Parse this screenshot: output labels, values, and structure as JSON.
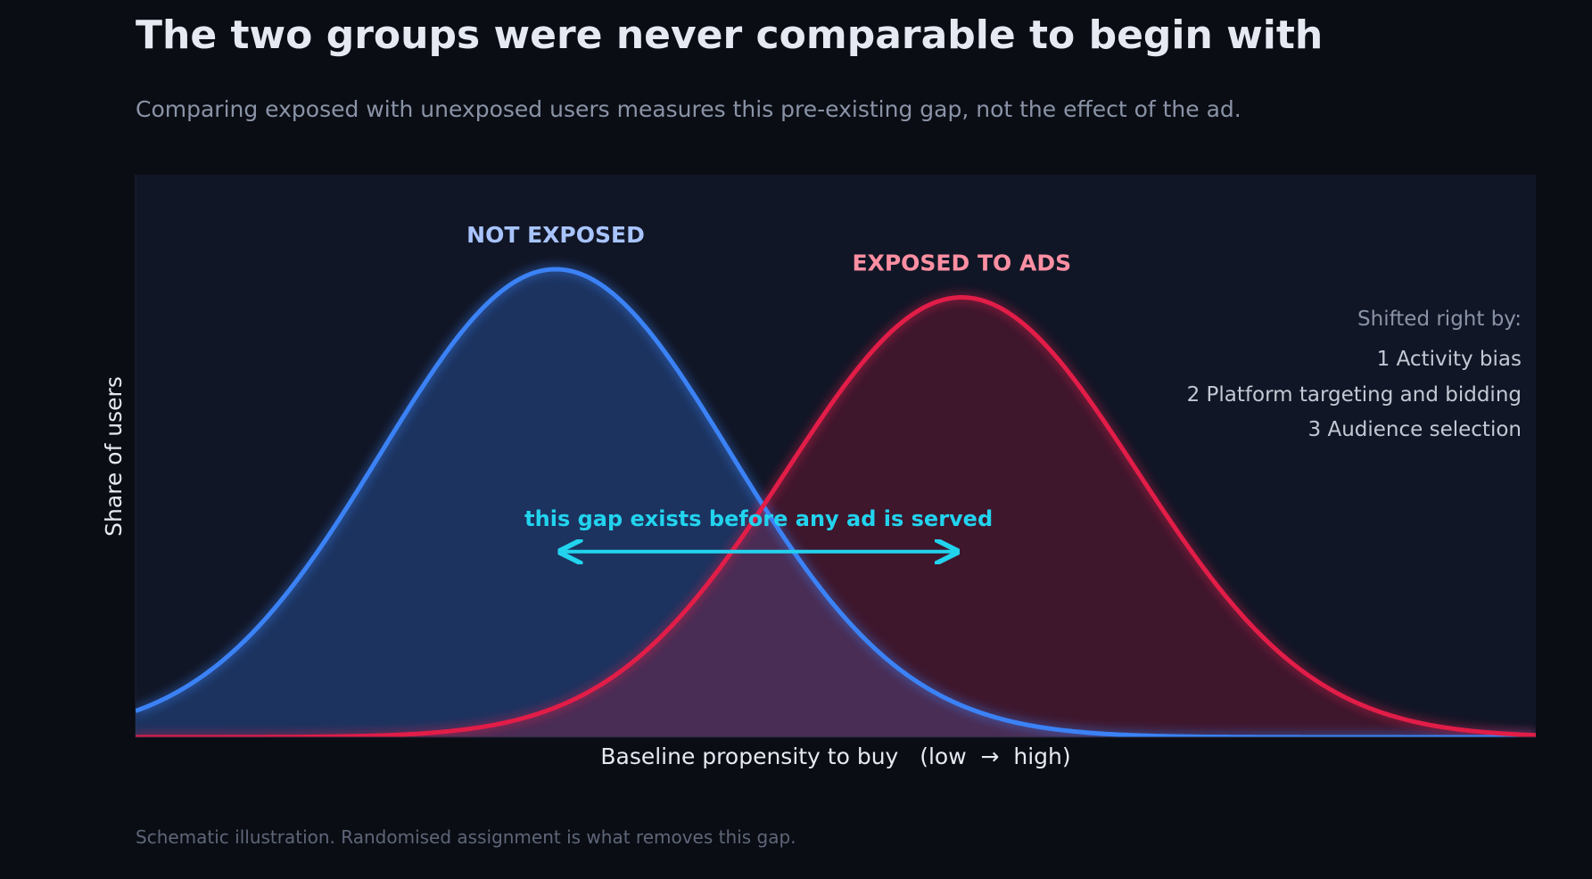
{
  "title": "The two groups were never comparable to begin with",
  "subtitle": "Comparing exposed with unexposed users measures this pre-existing gap, not the effect of the ad.",
  "footnote": "Schematic illustration. Randomised assignment is what removes this gap.",
  "colors": {
    "background": "#0a0d14",
    "plot_background": "#111626",
    "not_exposed": "#3b82f6",
    "not_exposed_label": "#a8c4ff",
    "exposed": "#e11d48",
    "exposed_label": "#ff8fa3",
    "gap": "#22d3ee",
    "overlap": "#4a2e55"
  },
  "chart_data": {
    "type": "area",
    "xlabel": "Baseline propensity to buy   (low  →  high)",
    "ylabel": "Share of users",
    "xlim": [
      0,
      1
    ],
    "ylim": [
      0,
      1
    ],
    "grid": false,
    "series": [
      {
        "name": "NOT EXPOSED",
        "mean": 0.3,
        "sd": 0.125,
        "peak": 0.832
      },
      {
        "name": "EXPOSED TO ADS",
        "mean": 0.59,
        "sd": 0.125,
        "peak": 0.782
      }
    ],
    "annotations": {
      "gap_label": "this gap exists before any ad is served",
      "gap_from": 0.3,
      "gap_to": 0.59,
      "gap_level": 0.33,
      "shift_heading": "Shifted right by:",
      "shift_items": [
        "1  Activity bias",
        "2  Platform targeting and bidding",
        "3  Audience selection"
      ]
    }
  }
}
